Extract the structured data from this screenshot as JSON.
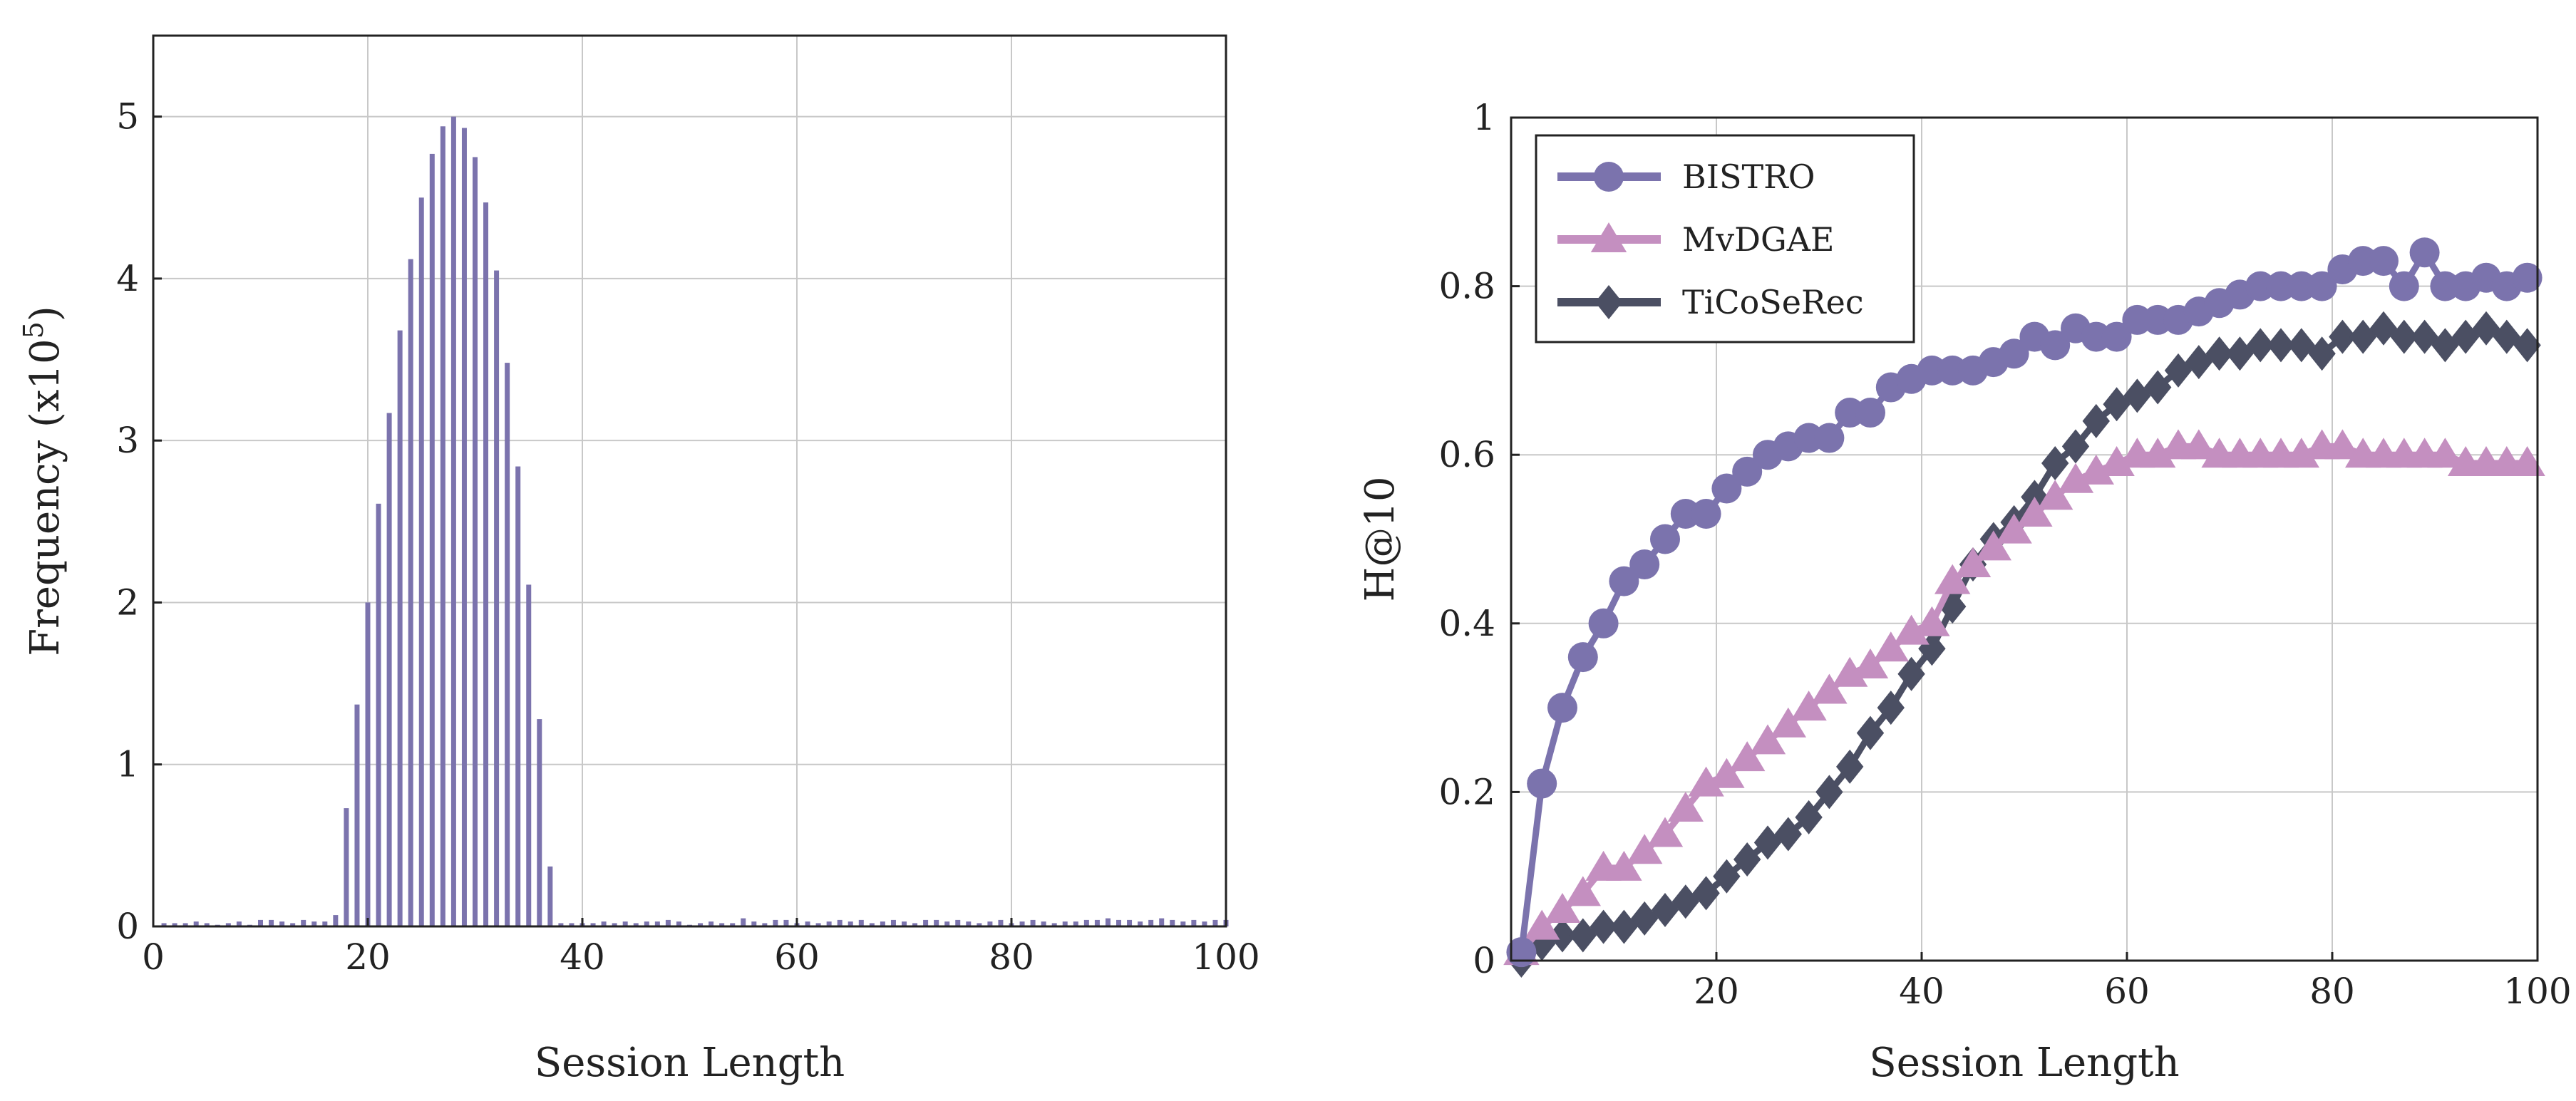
{
  "colors": {
    "bistro": "#7b73ad",
    "mvdgae": "#c48fc0",
    "ticoserec": "#4b4f63",
    "bars": "#7b73ad",
    "grid": "#c8c8c8",
    "axis": "#222222"
  },
  "chart_data": [
    {
      "type": "bar",
      "title": "",
      "xlabel": "Session Length",
      "ylabel": "Frequency (x10",
      "ylabel_sup": "5",
      "ylabel_close": ")",
      "xlim": [
        0,
        100
      ],
      "ylim": [
        0,
        5.5
      ],
      "xticks": [
        0,
        20,
        40,
        60,
        80,
        100
      ],
      "yticks": [
        0,
        1,
        2,
        3,
        4,
        5
      ],
      "grid": true,
      "x": [
        1,
        2,
        3,
        4,
        5,
        6,
        7,
        8,
        9,
        10,
        11,
        12,
        13,
        14,
        15,
        16,
        17,
        18,
        19,
        20,
        21,
        22,
        23,
        24,
        25,
        26,
        27,
        28,
        29,
        30,
        31,
        32,
        33,
        34,
        35,
        36,
        37,
        38,
        39,
        40,
        41,
        42,
        43,
        44,
        45,
        46,
        47,
        48,
        49,
        50,
        51,
        52,
        53,
        54,
        55,
        56,
        57,
        58,
        59,
        60,
        61,
        62,
        63,
        64,
        65,
        66,
        67,
        68,
        69,
        70,
        71,
        72,
        73,
        74,
        75,
        76,
        77,
        78,
        79,
        80,
        81,
        82,
        83,
        84,
        85,
        86,
        87,
        88,
        89,
        90,
        91,
        92,
        93,
        94,
        95,
        96,
        97,
        98,
        99,
        100
      ],
      "values": [
        0.02,
        0.02,
        0.02,
        0.03,
        0.02,
        0.01,
        0.02,
        0.03,
        0.01,
        0.04,
        0.04,
        0.03,
        0.02,
        0.04,
        0.03,
        0.03,
        0.07,
        0.73,
        1.37,
        2.0,
        2.61,
        3.17,
        3.68,
        4.12,
        4.5,
        4.77,
        4.94,
        5.0,
        4.93,
        4.75,
        4.47,
        4.05,
        3.48,
        2.84,
        2.11,
        1.28,
        0.37,
        0.02,
        0.02,
        0.02,
        0.02,
        0.03,
        0.02,
        0.03,
        0.02,
        0.03,
        0.03,
        0.04,
        0.03,
        0.01,
        0.02,
        0.03,
        0.02,
        0.02,
        0.05,
        0.03,
        0.02,
        0.04,
        0.04,
        0.02,
        0.03,
        0.02,
        0.03,
        0.04,
        0.03,
        0.04,
        0.02,
        0.03,
        0.04,
        0.03,
        0.02,
        0.04,
        0.04,
        0.03,
        0.04,
        0.03,
        0.02,
        0.03,
        0.04,
        0.02,
        0.03,
        0.04,
        0.03,
        0.02,
        0.03,
        0.03,
        0.04,
        0.04,
        0.05,
        0.04,
        0.04,
        0.03,
        0.04,
        0.05,
        0.04,
        0.03,
        0.04,
        0.03,
        0.04,
        0.04
      ]
    },
    {
      "type": "line",
      "title": "",
      "xlabel": "Session Length",
      "ylabel": "H@10",
      "xlim": [
        0,
        100
      ],
      "ylim": [
        0,
        1
      ],
      "xticks": [
        20,
        40,
        60,
        80,
        100
      ],
      "yticks": [
        0,
        0.2,
        0.4,
        0.6,
        0.8,
        1
      ],
      "ytick_labels": [
        "0",
        "0.2",
        "0.4",
        "0.6",
        "0.8",
        "1"
      ],
      "grid": true,
      "legend_position": "top-left",
      "x": [
        1,
        3,
        5,
        7,
        9,
        11,
        13,
        15,
        17,
        19,
        21,
        23,
        25,
        27,
        29,
        31,
        33,
        35,
        37,
        39,
        41,
        43,
        45,
        47,
        49,
        51,
        53,
        55,
        57,
        59,
        61,
        63,
        65,
        67,
        69,
        71,
        73,
        75,
        77,
        79,
        81,
        83,
        85,
        87,
        89,
        91,
        93,
        95,
        97,
        99
      ],
      "series": [
        {
          "name": "BISTRO",
          "color": "#7b73ad",
          "marker": "circle",
          "values": [
            0.01,
            0.21,
            0.3,
            0.36,
            0.4,
            0.45,
            0.47,
            0.5,
            0.53,
            0.53,
            0.56,
            0.58,
            0.6,
            0.61,
            0.62,
            0.62,
            0.65,
            0.65,
            0.68,
            0.69,
            0.7,
            0.7,
            0.7,
            0.71,
            0.72,
            0.74,
            0.73,
            0.75,
            0.74,
            0.74,
            0.76,
            0.76,
            0.76,
            0.77,
            0.78,
            0.79,
            0.8,
            0.8,
            0.8,
            0.8,
            0.82,
            0.83,
            0.83,
            0.8,
            0.84,
            0.8,
            0.8,
            0.81,
            0.8,
            0.81
          ]
        },
        {
          "name": "MvDGAE",
          "color": "#c48fc0",
          "marker": "triangle",
          "values": [
            0.01,
            0.04,
            0.06,
            0.08,
            0.11,
            0.11,
            0.13,
            0.15,
            0.18,
            0.21,
            0.22,
            0.24,
            0.26,
            0.28,
            0.3,
            0.32,
            0.34,
            0.35,
            0.37,
            0.39,
            0.4,
            0.45,
            0.47,
            0.49,
            0.51,
            0.53,
            0.55,
            0.57,
            0.58,
            0.59,
            0.6,
            0.6,
            0.61,
            0.61,
            0.6,
            0.6,
            0.6,
            0.6,
            0.6,
            0.61,
            0.61,
            0.6,
            0.6,
            0.6,
            0.6,
            0.6,
            0.59,
            0.59,
            0.59,
            0.59
          ]
        },
        {
          "name": "TiCoSeRec",
          "color": "#4b4f63",
          "marker": "diamond",
          "values": [
            0.0,
            0.02,
            0.03,
            0.03,
            0.04,
            0.04,
            0.05,
            0.06,
            0.07,
            0.08,
            0.1,
            0.12,
            0.14,
            0.15,
            0.17,
            0.2,
            0.23,
            0.27,
            0.3,
            0.34,
            0.37,
            0.42,
            0.47,
            0.5,
            0.52,
            0.55,
            0.59,
            0.61,
            0.64,
            0.66,
            0.67,
            0.68,
            0.7,
            0.71,
            0.72,
            0.72,
            0.73,
            0.73,
            0.73,
            0.72,
            0.74,
            0.74,
            0.75,
            0.74,
            0.74,
            0.73,
            0.74,
            0.75,
            0.74,
            0.73
          ]
        }
      ]
    }
  ]
}
